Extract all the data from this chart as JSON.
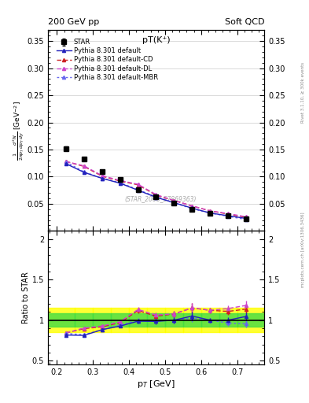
{
  "title": "pT(K⁺)",
  "header_left": "200 GeV pp",
  "header_right": "Soft QCD",
  "watermark": "(STAR_2008_S7869363)",
  "right_label_top": "Rivet 3.1.10, ≥ 300k events",
  "right_label_bot": "mcplots.cern.ch [arXiv:1306.3436]",
  "xlabel": "p$_{T}$ [GeV]",
  "ylabel": "$\\frac{1}{2\\pi p_T}\\frac{d^2N}{dp_T\\,dy}$ [GeV$^{-2}$]",
  "ylabel_ratio": "Ratio to STAR",
  "star_x": [
    0.225,
    0.275,
    0.325,
    0.375,
    0.425,
    0.475,
    0.525,
    0.575,
    0.625,
    0.675,
    0.725
  ],
  "star_y": [
    0.152,
    0.133,
    0.11,
    0.095,
    0.076,
    0.063,
    0.052,
    0.04,
    0.033,
    0.028,
    0.022
  ],
  "star_yerr": [
    0.004,
    0.003,
    0.002,
    0.002,
    0.002,
    0.002,
    0.002,
    0.002,
    0.001,
    0.001,
    0.001
  ],
  "pythia_default_y": [
    0.124,
    0.108,
    0.097,
    0.088,
    0.075,
    0.062,
    0.052,
    0.042,
    0.033,
    0.028,
    0.023
  ],
  "pythia_cd_y": [
    0.128,
    0.119,
    0.101,
    0.092,
    0.085,
    0.066,
    0.056,
    0.046,
    0.037,
    0.031,
    0.025
  ],
  "pythia_dl_y": [
    0.128,
    0.12,
    0.102,
    0.093,
    0.086,
    0.067,
    0.056,
    0.046,
    0.037,
    0.032,
    0.026
  ],
  "pythia_mbr_y": [
    0.127,
    0.109,
    0.097,
    0.089,
    0.076,
    0.063,
    0.052,
    0.041,
    0.033,
    0.027,
    0.021
  ],
  "color_default": "#2222bb",
  "color_cd": "#cc2222",
  "color_dl": "#cc44cc",
  "color_mbr": "#6666ee",
  "ylim_main": [
    0.0,
    0.37
  ],
  "ylim_ratio": [
    0.45,
    2.1
  ],
  "xlim": [
    0.175,
    0.775
  ],
  "ratio_band_yellow": 0.15,
  "ratio_band_green": 0.08,
  "bg_color": "#ffffff"
}
